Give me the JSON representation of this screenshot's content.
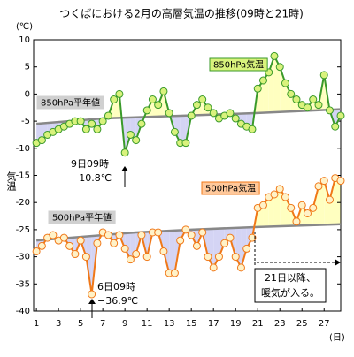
{
  "chart_data": {
    "type": "line",
    "title": "つくばにおける2月の高層気温の推移(09時と21時)",
    "y_unit": "(℃)",
    "y_label": "気温",
    "x_unit": "(日)",
    "xlim": [
      0.75,
      28.5
    ],
    "xticks": [
      1,
      3,
      5,
      7,
      9,
      11,
      13,
      15,
      17,
      19,
      21,
      23,
      25,
      27
    ],
    "ylim": [
      -40,
      10
    ],
    "yticks": [
      10,
      5,
      0,
      -5,
      -10,
      -15,
      -20,
      -25,
      -30,
      -35,
      -40
    ],
    "x": [
      1,
      1.5,
      2,
      2.5,
      3,
      3.5,
      4,
      4.5,
      5,
      5.5,
      6,
      6.5,
      7,
      7.5,
      8,
      8.5,
      9,
      9.5,
      10,
      10.5,
      11,
      11.5,
      12,
      12.5,
      13,
      13.5,
      14,
      14.5,
      15,
      15.5,
      16,
      16.5,
      17,
      17.5,
      18,
      18.5,
      19,
      19.5,
      20,
      20.5,
      21,
      21.5,
      22,
      22.5,
      23,
      23.5,
      24,
      24.5,
      25,
      25.5,
      26,
      26.5,
      27,
      27.5,
      28,
      28.5
    ],
    "series": [
      {
        "name": "850hPa気温",
        "color": "#3a9a2a",
        "marker_fill": "#d9f27c",
        "values": [
          -9,
          -8.5,
          -7.5,
          -7,
          -6.5,
          -6,
          -5.5,
          -5,
          -5,
          -6.5,
          -5.5,
          -6.5,
          -5,
          -4,
          -1,
          0,
          -10.8,
          -7.5,
          -8.5,
          -5.5,
          -3,
          -1,
          -2,
          0.5,
          -3.5,
          -7,
          -9,
          -9,
          -4,
          -2,
          -1,
          -2.5,
          -3.5,
          -4.5,
          -4,
          -3.5,
          -4.5,
          -5.5,
          -6,
          -6.5,
          1,
          2.5,
          4,
          7,
          5,
          2,
          0,
          -1,
          -2,
          -2.5,
          -1,
          -2,
          3.5,
          -3,
          -6,
          -4
        ]
      },
      {
        "name": "850hPa平年値",
        "color": "#888888",
        "x": [
          1,
          7,
          14,
          21,
          28.5
        ],
        "values": [
          -5.5,
          -4.5,
          -4,
          -3.5,
          -2.8
        ]
      },
      {
        "name": "500hPa気温",
        "color": "#f07818",
        "marker_fill": "#fff2c8",
        "values": [
          -29,
          -28,
          -26.5,
          -26,
          -27,
          -26.5,
          -28,
          -29.5,
          -27,
          -30,
          -36.9,
          -27.5,
          -25.5,
          -26,
          -27.5,
          -26,
          -28.5,
          -30.5,
          -29.5,
          -26,
          -30,
          -25.5,
          -25.5,
          -29,
          -33,
          -33,
          -27,
          -25,
          -26,
          -28,
          -25.5,
          -30,
          -32,
          -30,
          -27.5,
          -26.5,
          -30,
          -32,
          -28.5,
          -26.5,
          -21,
          -20.5,
          -19,
          -18.5,
          -17.5,
          -19,
          -21,
          -23.5,
          -20.5,
          -22,
          -21,
          -17,
          -16,
          -19.5,
          -15.5,
          -16
        ]
      },
      {
        "name": "500hPa平年値",
        "color": "#888888",
        "x": [
          1,
          10,
          15,
          21,
          28.5
        ],
        "values": [
          -27,
          -25.5,
          -25,
          -24.5,
          -24
        ]
      }
    ],
    "annotations": [
      {
        "lines": [
          "9日09時",
          "−10.8℃"
        ]
      },
      {
        "lines": [
          "6日09時",
          "−36.9℃"
        ]
      },
      {
        "lines": [
          "21日以降、",
          "暖気が入る。"
        ]
      }
    ]
  }
}
